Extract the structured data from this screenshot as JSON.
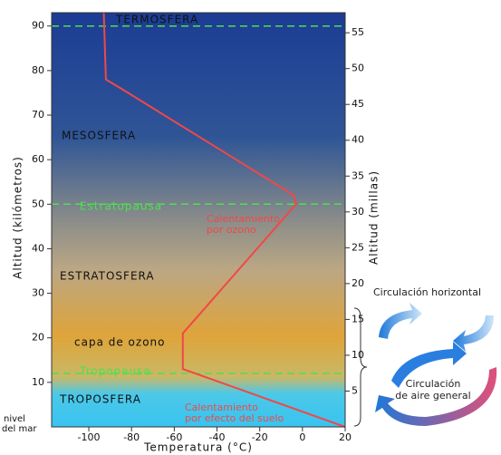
{
  "chart_data": {
    "type": "line",
    "x_label": "Temperatura (°C)",
    "y_label": "Altitud (kilómetros)",
    "y2_label": "Altitud (millas)",
    "sea_level": [
      "nivel",
      "del mar"
    ],
    "x": [
      -93,
      -92,
      -85,
      -4,
      -3,
      -56,
      -56,
      20
    ],
    "values": [
      93,
      78,
      76,
      52,
      50,
      21,
      13,
      0
    ],
    "line_color": "#f04848",
    "xlim": [
      -117.4,
      20
    ],
    "xticks": [
      -100,
      -80,
      -60,
      -40,
      -20,
      0,
      20
    ],
    "ylim": [
      0,
      93
    ],
    "yticks": [
      10,
      20,
      30,
      40,
      50,
      60,
      70,
      80,
      90
    ],
    "y2lim": [
      0,
      57.8
    ],
    "y2ticks": [
      5,
      10,
      15,
      20,
      25,
      30,
      35,
      40,
      45,
      50,
      55
    ],
    "boundaries": [
      90,
      50,
      12
    ],
    "boundary_color": "#4ee04e",
    "layers": {
      "termosfera": "TERMOSFERA",
      "mesosfera": "MESOSFERA",
      "estratopausa": "Estratopausa",
      "estratosfera": "ESTRATOSFERA",
      "ozono": "capa de ozono",
      "tropopausa": "Tropopausa",
      "troposfera": "TROPOSFERA"
    },
    "ozone_heating": [
      "Calentamiento",
      "por ozono"
    ],
    "ground_heating": [
      "Calentamiento",
      "por efecto del suelo"
    ],
    "circulation_horizontal": "Circulación horizontal",
    "circulation_general": [
      "Circulación",
      "de aire general"
    ]
  }
}
